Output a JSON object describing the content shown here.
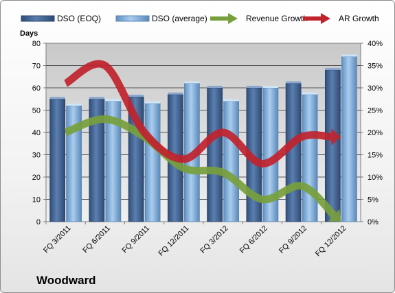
{
  "chart_data": {
    "type": "bar",
    "title": "",
    "company": "Woodward",
    "ylabel_left": "Days",
    "categories": [
      "FQ 3/2011",
      "FQ 6/2011",
      "FQ 9/2011",
      "FQ 12/2011",
      "FQ 3/2012",
      "FQ 6/2012",
      "FQ 9/2012",
      "FQ 12/2012"
    ],
    "y_left_ticks": [
      "0",
      "10",
      "20",
      "30",
      "40",
      "50",
      "60",
      "70",
      "80"
    ],
    "y_right_ticks": [
      "0%",
      "5%",
      "10%",
      "15%",
      "20%",
      "25%",
      "30%",
      "35%",
      "40%"
    ],
    "ylim_left": [
      0,
      80
    ],
    "ylim_right": [
      0,
      40
    ],
    "series": [
      {
        "name": "DSO (EOQ)",
        "kind": "bar",
        "axis": "left",
        "color": "#4a6b9a",
        "values": [
          55,
          55,
          56,
          57,
          60,
          60,
          62,
          68
        ]
      },
      {
        "name": "DSO (average)",
        "kind": "bar",
        "axis": "left",
        "color": "#87b5de",
        "values": [
          52,
          54,
          53,
          62,
          54,
          60,
          57,
          74
        ]
      },
      {
        "name": "Revenue Growth",
        "kind": "arrow-line",
        "axis": "right",
        "color": "#77a03c",
        "values": [
          20,
          23,
          19,
          12,
          11,
          5,
          8,
          0
        ]
      },
      {
        "name": "AR Growth",
        "kind": "arrow-line",
        "axis": "right",
        "color": "#c0232c",
        "values": [
          31,
          35,
          20,
          14,
          20,
          13,
          19,
          19
        ]
      }
    ],
    "grid": true,
    "legend_position": "top"
  }
}
